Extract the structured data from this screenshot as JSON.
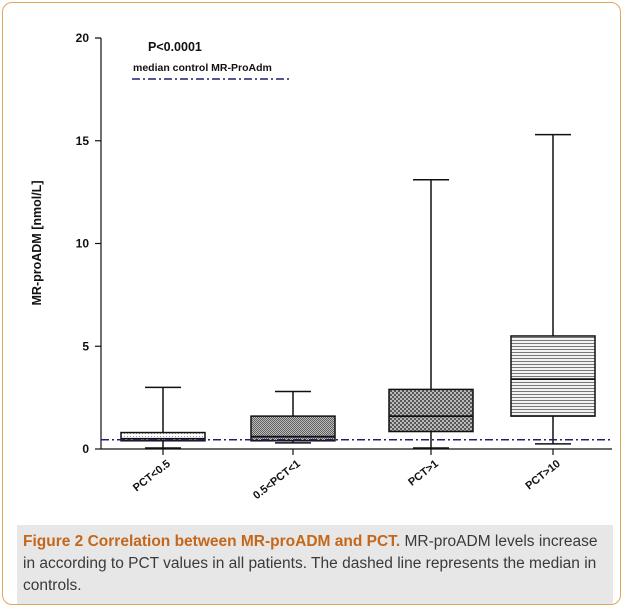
{
  "chart_data": {
    "type": "boxplot",
    "ylabel": "MR-proADM [nmol/L]",
    "ylim": [
      0,
      20
    ],
    "yticks": [
      0,
      5,
      10,
      15,
      20
    ],
    "categories": [
      "PCT<0.5",
      "0.5<PCT<1",
      "PCT>1",
      "PCT>10"
    ],
    "boxes": [
      {
        "category": "PCT<0.5",
        "min": 0.05,
        "q1": 0.4,
        "median": 0.5,
        "q3": 0.8,
        "max": 3.0,
        "pattern": "dots"
      },
      {
        "category": "0.5<PCT<1",
        "min": 0.3,
        "q1": 0.4,
        "median": 0.6,
        "q3": 1.6,
        "max": 2.8,
        "pattern": "dense"
      },
      {
        "category": "PCT>1",
        "min": 0.05,
        "q1": 0.85,
        "median": 1.6,
        "q3": 2.9,
        "max": 13.1,
        "pattern": "cross"
      },
      {
        "category": "PCT>10",
        "min": 0.25,
        "q1": 1.6,
        "median": 3.4,
        "q3": 5.5,
        "max": 15.3,
        "pattern": "hlines"
      }
    ],
    "reference_line": {
      "label": "median control MR-ProAdm",
      "value": 0.45,
      "color": "#1f1f7a"
    },
    "annotation": "P<0.0001"
  },
  "caption": {
    "title": "Figure 2 Correlation between MR-proADM and PCT.",
    "text": " MR-proADM levels increase in according to PCT values in all patients. The dashed line represents the median in controls."
  }
}
